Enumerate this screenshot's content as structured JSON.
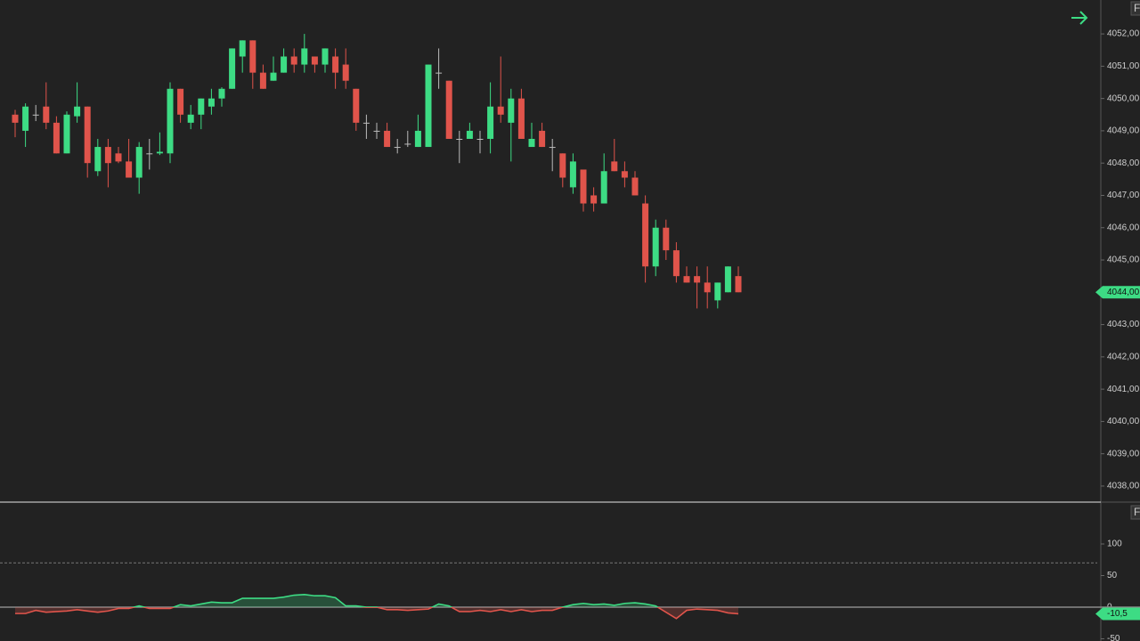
{
  "chart_data": [
    {
      "type": "candlestick",
      "open": [
        4049.5,
        4049.0,
        4049.5,
        4049.75,
        4049.25,
        4048.3,
        4049.45,
        4049.75,
        4047.75,
        4048.5,
        4048.3,
        4048.05,
        4047.55,
        4048.3,
        4048.3,
        4048.3,
        4050.3,
        4049.25,
        4049.5,
        4049.75,
        4050.0,
        4050.3,
        4051.3,
        4051.8,
        4050.8,
        4050.55,
        4050.8,
        4051.3,
        4051.05,
        4051.3,
        4051.05,
        4051.3,
        4051.05,
        4050.3,
        4049.25,
        4049.0,
        4049.0,
        4048.5,
        4048.6,
        4048.5,
        4048.5,
        4050.8,
        4050.55,
        4048.75,
        4048.75,
        4048.75,
        4048.75,
        4049.75,
        4049.25,
        4050.0,
        4048.5,
        4049.0,
        4048.5,
        4048.3,
        4047.25,
        4047.8,
        4047.0,
        4046.75,
        4048.05,
        4047.75,
        4047.55,
        4046.75,
        4044.8,
        4046.0,
        4045.3,
        4044.5,
        4044.5,
        4044.3,
        4043.75,
        4044.0,
        4044.5
      ],
      "high": [
        4049.65,
        4049.85,
        4049.8,
        4050.5,
        4049.45,
        4049.6,
        4050.5,
        4049.75,
        4048.75,
        4048.75,
        4048.5,
        4048.75,
        4048.65,
        4048.75,
        4048.95,
        4050.5,
        4050.3,
        4049.8,
        4050.0,
        4050.3,
        4050.35,
        4051.55,
        4051.8,
        4051.8,
        4051.05,
        4051.3,
        4051.55,
        4051.55,
        4052.0,
        4051.3,
        4051.55,
        4051.55,
        4051.55,
        4050.3,
        4049.5,
        4049.25,
        4049.25,
        4048.75,
        4049.0,
        4049.5,
        4051.05,
        4051.55,
        4050.55,
        4049.0,
        4049.25,
        4049.0,
        4050.5,
        4051.3,
        4050.3,
        4050.3,
        4049.25,
        4049.25,
        4048.75,
        4048.3,
        4048.3,
        4047.8,
        4047.25,
        4048.3,
        4048.75,
        4048.05,
        4047.75,
        4047.0,
        4046.25,
        4046.25,
        4045.55,
        4044.8,
        4044.8,
        4044.8,
        4044.3,
        4044.8,
        4044.8
      ],
      "low": [
        4048.8,
        4048.5,
        4049.3,
        4049.05,
        4048.3,
        4048.3,
        4049.25,
        4047.55,
        4047.6,
        4047.25,
        4048.0,
        4047.55,
        4047.05,
        4047.8,
        4048.25,
        4048.0,
        4049.25,
        4049.05,
        4049.05,
        4049.5,
        4049.75,
        4050.3,
        4050.8,
        4050.3,
        4050.3,
        4050.55,
        4050.8,
        4050.8,
        4050.8,
        4050.8,
        4050.8,
        4050.3,
        4050.3,
        4049.0,
        4048.75,
        4048.75,
        4048.5,
        4048.3,
        4048.5,
        4048.5,
        4048.5,
        4050.3,
        4048.75,
        4048.0,
        4048.75,
        4048.3,
        4048.3,
        4049.25,
        4048.05,
        4048.75,
        4048.5,
        4048.5,
        4047.75,
        4047.25,
        4047.05,
        4046.5,
        4046.5,
        4046.75,
        4047.75,
        4047.25,
        4047.0,
        4044.3,
        4044.5,
        4045.0,
        4044.3,
        4044.3,
        4043.5,
        4043.5,
        4043.5,
        4044.0,
        4044.0
      ],
      "close": [
        4049.25,
        4049.75,
        4049.5,
        4049.25,
        4048.3,
        4049.5,
        4049.75,
        4048.0,
        4048.5,
        4048.0,
        4048.05,
        4047.55,
        4048.5,
        4048.3,
        4048.35,
        4050.3,
        4049.5,
        4049.5,
        4050.0,
        4050.0,
        4050.3,
        4051.55,
        4051.8,
        4050.8,
        4050.3,
        4050.8,
        4051.3,
        4051.05,
        4051.55,
        4051.05,
        4051.55,
        4050.8,
        4050.55,
        4049.25,
        4049.25,
        4049.0,
        4048.5,
        4048.5,
        4048.6,
        4049.0,
        4051.05,
        4050.8,
        4048.75,
        4048.75,
        4049.0,
        4048.75,
        4049.75,
        4049.5,
        4050.0,
        4048.75,
        4048.75,
        4048.5,
        4048.5,
        4047.55,
        4048.05,
        4046.75,
        4046.75,
        4047.75,
        4047.75,
        4047.55,
        4047.0,
        4044.8,
        4046.0,
        4045.3,
        4044.5,
        4044.3,
        4044.3,
        4044.0,
        4044.3,
        4044.8,
        4044.0
      ],
      "up_color": "#3ddc84",
      "down_color": "#e0544b",
      "doji_color": "#bbbbbb",
      "ylim": [
        4037.53,
        4053.05
      ],
      "yticks": [
        {
          "value": 4038,
          "label": "4038,00"
        },
        {
          "value": 4039,
          "label": "4039,00"
        },
        {
          "value": 4040,
          "label": "4040,00"
        },
        {
          "value": 4041,
          "label": "4041,00"
        },
        {
          "value": 4042,
          "label": "4042,00"
        },
        {
          "value": 4043,
          "label": "4043,00"
        },
        {
          "value": 4044,
          "label": "4044,00"
        },
        {
          "value": 4045,
          "label": "4045,00"
        },
        {
          "value": 4046,
          "label": "4046,00"
        },
        {
          "value": 4047,
          "label": "4047,00"
        },
        {
          "value": 4048,
          "label": "4048,00"
        },
        {
          "value": 4049,
          "label": "4049,00"
        },
        {
          "value": 4050,
          "label": "4050,00"
        },
        {
          "value": 4051,
          "label": "4051,00"
        },
        {
          "value": 4052,
          "label": "4052,00"
        }
      ],
      "last_price": {
        "value": 4044,
        "label": "4044,00"
      },
      "scale_button": "F"
    },
    {
      "type": "line",
      "values": [
        -10,
        -10,
        -5,
        -8,
        -7,
        -6,
        -4,
        -6,
        -8,
        -6,
        -2,
        -2,
        2,
        -2,
        -2,
        -2,
        4,
        2,
        5,
        8,
        7,
        7,
        14,
        14,
        14,
        14,
        16,
        19,
        20,
        18,
        18,
        15,
        2,
        2,
        0,
        0,
        -4,
        -4,
        -5,
        -4,
        -3,
        5,
        2,
        -7,
        -7,
        -5,
        -7,
        -4,
        -7,
        -4,
        -7,
        -5,
        -5,
        0,
        4,
        6,
        4,
        5,
        3,
        6,
        7,
        5,
        2,
        -8,
        -18,
        -5,
        -3,
        -4,
        -5,
        -9,
        -10.5
      ],
      "last_value_label": "-10,5",
      "up_color": "#3ddc84",
      "down_color": "#e0544b",
      "ylim": [
        -53.5,
        164.8
      ],
      "yticks": [
        -50,
        0,
        50,
        100
      ],
      "levels": [
        70
      ],
      "scale_button": "F"
    }
  ]
}
